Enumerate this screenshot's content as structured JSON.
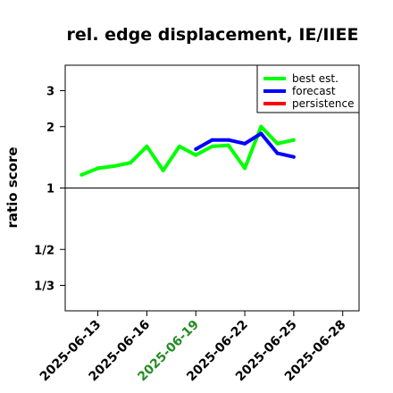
{
  "chart_data": {
    "type": "line",
    "title": "rel. edge displacement, IE/IIEE",
    "xlabel": "",
    "ylabel": "ratio score",
    "x_ticks": [
      "2025-06-13",
      "2025-06-16",
      "2025-06-19",
      "2025-06-22",
      "2025-06-25",
      "2025-06-28"
    ],
    "x_tick_colors": [
      "#000000",
      "#000000",
      "#228B22",
      "#000000",
      "#000000",
      "#000000"
    ],
    "y_scale": "log",
    "y_ticks": [
      {
        "value": 0.3333,
        "label": "1/3"
      },
      {
        "value": 0.5,
        "label": "1/2"
      },
      {
        "value": 1,
        "label": "1"
      },
      {
        "value": 2,
        "label": "2"
      },
      {
        "value": 3,
        "label": "3"
      }
    ],
    "xlim": [
      "2025-06-11",
      "2025-06-29"
    ],
    "ylim": [
      0.25,
      4.0
    ],
    "reference_line": 1,
    "grid": false,
    "legend_position": "top-right",
    "series": [
      {
        "name": "best est.",
        "color": "#00FF00",
        "points": [
          {
            "x": "2025-06-12",
            "y": 1.16
          },
          {
            "x": "2025-06-13",
            "y": 1.25
          },
          {
            "x": "2025-06-14",
            "y": 1.28
          },
          {
            "x": "2025-06-15",
            "y": 1.33
          },
          {
            "x": "2025-06-16",
            "y": 1.6
          },
          {
            "x": "2025-06-17",
            "y": 1.22
          },
          {
            "x": "2025-06-18",
            "y": 1.6
          },
          {
            "x": "2025-06-19",
            "y": 1.45
          },
          {
            "x": "2025-06-20",
            "y": 1.6
          },
          {
            "x": "2025-06-21",
            "y": 1.62
          },
          {
            "x": "2025-06-22",
            "y": 1.25
          },
          {
            "x": "2025-06-23",
            "y": 2.0
          },
          {
            "x": "2025-06-24",
            "y": 1.65
          },
          {
            "x": "2025-06-25",
            "y": 1.72
          }
        ]
      },
      {
        "name": "forecast",
        "color": "#0000FF",
        "points": [
          {
            "x": "2025-06-19",
            "y": 1.55
          },
          {
            "x": "2025-06-20",
            "y": 1.72
          },
          {
            "x": "2025-06-21",
            "y": 1.72
          },
          {
            "x": "2025-06-22",
            "y": 1.65
          },
          {
            "x": "2025-06-23",
            "y": 1.85
          },
          {
            "x": "2025-06-24",
            "y": 1.48
          },
          {
            "x": "2025-06-25",
            "y": 1.42
          }
        ]
      },
      {
        "name": "persistence",
        "color": "#FF0000",
        "points": []
      }
    ]
  }
}
